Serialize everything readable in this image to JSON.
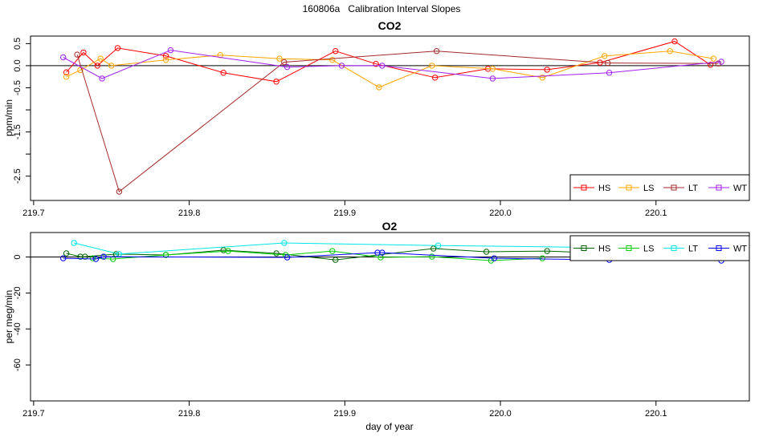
{
  "title": "160806a   Calibration Interval Slopes",
  "chart_data": [
    {
      "type": "line",
      "title": "CO2",
      "xlabel": "",
      "ylabel": "ppm/min",
      "xlim": [
        219.698,
        220.16
      ],
      "ylim": [
        -3.05,
        0.67
      ],
      "xticks": [
        219.7,
        219.8,
        219.9,
        220.0,
        220.1
      ],
      "xtick_labels": [
        "219.7",
        "219.8",
        "219.9",
        "220.0",
        "220.1"
      ],
      "yticks": [
        0.5,
        0.0,
        -0.5,
        -1.0,
        -1.5,
        -2.0,
        -2.5
      ],
      "ytick_labels": [
        "0.5",
        "0.0",
        "-0.5",
        "",
        "-1.5",
        "",
        "-2.5"
      ],
      "zero_line": true,
      "grid": false,
      "legend_position": "bottom-right",
      "series": [
        {
          "name": "HS",
          "color": "#ff0000",
          "points": [
            [
              219.721,
              -0.15
            ],
            [
              219.732,
              0.3
            ],
            [
              219.741,
              0.0
            ],
            [
              219.754,
              0.4
            ],
            [
              219.785,
              0.22
            ],
            [
              219.822,
              -0.16
            ],
            [
              219.856,
              -0.36
            ],
            [
              219.894,
              0.33
            ],
            [
              219.92,
              0.04
            ],
            [
              219.958,
              -0.27
            ],
            [
              219.992,
              -0.07
            ],
            [
              220.03,
              -0.09
            ],
            [
              220.064,
              0.07
            ],
            [
              220.112,
              0.55
            ],
            [
              220.135,
              0.02
            ]
          ]
        },
        {
          "name": "LS",
          "color": "#ffa500",
          "points": [
            [
              219.721,
              -0.25
            ],
            [
              219.73,
              -0.1
            ],
            [
              219.743,
              0.16
            ],
            [
              219.75,
              0.0
            ],
            [
              219.785,
              0.13
            ],
            [
              219.82,
              0.24
            ],
            [
              219.858,
              0.16
            ],
            [
              219.892,
              0.13
            ],
            [
              219.922,
              -0.49
            ],
            [
              219.956,
              0.0
            ],
            [
              219.995,
              -0.07
            ],
            [
              220.027,
              -0.27
            ],
            [
              220.067,
              0.22
            ],
            [
              220.109,
              0.33
            ],
            [
              220.137,
              0.16
            ]
          ]
        },
        {
          "name": "LT",
          "color": "#a52a2a",
          "points": [
            [
              219.728,
              0.25
            ],
            [
              219.755,
              -2.85
            ],
            [
              219.861,
              0.08
            ],
            [
              219.959,
              0.33
            ],
            [
              220.069,
              0.06
            ],
            [
              220.14,
              0.05
            ]
          ]
        },
        {
          "name": "WT",
          "color": "#a020f0",
          "points": [
            [
              219.719,
              0.19
            ],
            [
              219.744,
              -0.29
            ],
            [
              219.788,
              0.35
            ],
            [
              219.863,
              -0.03
            ],
            [
              219.898,
              0.0
            ],
            [
              219.924,
              0.0
            ],
            [
              219.995,
              -0.29
            ],
            [
              220.07,
              -0.16
            ],
            [
              220.142,
              0.09
            ]
          ]
        }
      ]
    },
    {
      "type": "line",
      "title": "O2",
      "xlabel": "day of year",
      "ylabel": "per meg/min",
      "xlim": [
        219.698,
        220.16
      ],
      "ylim": [
        -80,
        13.6
      ],
      "xticks": [
        219.7,
        219.8,
        219.9,
        220.0,
        220.1
      ],
      "xtick_labels": [
        "219.7",
        "219.8",
        "219.9",
        "220.0",
        "220.1"
      ],
      "yticks": [
        0,
        -20,
        -40,
        -60
      ],
      "ytick_labels": [
        "0",
        "-20",
        "-40",
        "-60"
      ],
      "zero_line": true,
      "grid": false,
      "legend_position": "top-right",
      "series": [
        {
          "name": "HS",
          "color": "#006400",
          "points": [
            [
              219.721,
              2.0
            ],
            [
              219.73,
              0.2
            ],
            [
              219.733,
              0.2
            ],
            [
              219.753,
              1.6
            ],
            [
              219.785,
              1.1
            ],
            [
              219.822,
              3.8
            ],
            [
              219.856,
              2.0
            ],
            [
              219.894,
              -1.6
            ],
            [
              219.957,
              4.7
            ],
            [
              219.991,
              2.9
            ],
            [
              220.03,
              3.3
            ],
            [
              220.137,
              -0.2
            ]
          ]
        },
        {
          "name": "LS",
          "color": "#00cc00",
          "points": [
            [
              219.738,
              -0.7
            ],
            [
              219.751,
              -1.1
            ],
            [
              219.785,
              1.1
            ],
            [
              219.825,
              3.3
            ],
            [
              219.862,
              1.1
            ],
            [
              219.892,
              3.3
            ],
            [
              219.923,
              -0.2
            ],
            [
              219.956,
              0.2
            ],
            [
              219.994,
              -2.0
            ],
            [
              220.027,
              -0.7
            ]
          ]
        },
        {
          "name": "LT",
          "color": "#00e5e5",
          "points": [
            [
              219.726,
              7.8
            ],
            [
              219.755,
              1.6
            ],
            [
              219.861,
              7.8
            ],
            [
              219.96,
              6.4
            ],
            [
              220.14,
              4.5
            ]
          ]
        },
        {
          "name": "WT",
          "color": "#0000ff",
          "points": [
            [
              219.719,
              -0.7
            ],
            [
              219.74,
              -1.1
            ],
            [
              219.745,
              0.2
            ],
            [
              219.863,
              -0.2
            ],
            [
              219.921,
              2.4
            ],
            [
              219.924,
              2.4
            ],
            [
              219.996,
              -0.7
            ],
            [
              220.07,
              -1.6
            ],
            [
              220.142,
              -2.0
            ]
          ]
        }
      ]
    }
  ]
}
